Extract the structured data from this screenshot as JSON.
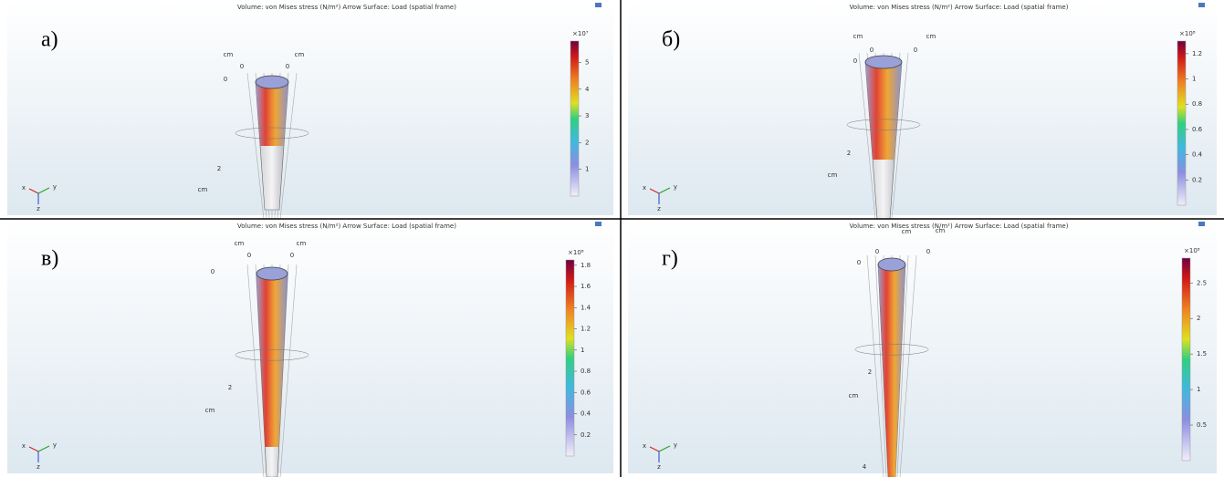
{
  "panels": [
    {
      "label": "а)",
      "title": "Volume: von Mises stress (N/m²)  Arrow Surface: Load (spatial frame)",
      "colorbar": {
        "multiplier": "×10⁷",
        "range": [
          0,
          5.8
        ],
        "ticks": [
          1,
          2,
          3,
          4,
          5
        ]
      },
      "axis_labels": [
        "cm",
        "cm",
        "0",
        "0",
        "0",
        "2",
        "cm"
      ],
      "triad": [
        "x",
        "y",
        "z"
      ]
    },
    {
      "label": "б)",
      "title": "Volume: von Mises stress (N/m²)  Arrow Surface: Load (spatial frame)",
      "colorbar": {
        "multiplier": "×10⁸",
        "range": [
          0,
          1.3
        ],
        "ticks": [
          0.2,
          0.4,
          0.6,
          0.8,
          1,
          1.2
        ]
      },
      "axis_labels": [
        "cm",
        "cm",
        "0",
        "0",
        "0",
        "2",
        "cm"
      ],
      "triad": [
        "x",
        "y",
        "z"
      ]
    },
    {
      "label": "в)",
      "title": "Volume: von Mises stress (N/m²)  Arrow Surface: Load (spatial frame)",
      "colorbar": {
        "multiplier": "×10⁸",
        "range": [
          0,
          1.85
        ],
        "ticks": [
          0.2,
          0.4,
          0.6,
          0.8,
          1,
          1.2,
          1.4,
          1.6,
          1.8
        ]
      },
      "axis_labels": [
        "cm",
        "cm",
        "0",
        "0",
        "0",
        "2",
        "cm"
      ],
      "triad": [
        "x",
        "y",
        "z"
      ]
    },
    {
      "label": "г)",
      "title": "Volume: von Mises stress (N/m²)  Arrow Surface: Load (spatial frame)",
      "colorbar": {
        "multiplier": "×10⁸",
        "range": [
          0,
          2.85
        ],
        "ticks": [
          0.5,
          1,
          1.5,
          2,
          2.5
        ]
      },
      "axis_labels": [
        "cm",
        "cm",
        "0",
        "0",
        "0",
        "2",
        "cm",
        "4"
      ],
      "triad": [
        "x",
        "y",
        "z"
      ]
    }
  ]
}
